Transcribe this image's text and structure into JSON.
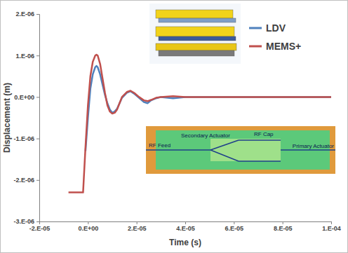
{
  "chart_data": {
    "type": "line",
    "x_label": "Time (s)",
    "y_label": "Displacement (m)",
    "x": [
      -8e-06,
      -6e-06,
      -4e-06,
      -2.5e-06,
      -2e-06,
      -1e-06,
      0,
      1e-06,
      2e-06,
      3e-06,
      3.5e-06,
      4e-06,
      5e-06,
      6e-06,
      7e-06,
      8e-06,
      9e-06,
      1e-05,
      1.1e-05,
      1.2e-05,
      1.3e-05,
      1.4e-05,
      1.6e-05,
      1.75e-05,
      1.9e-05,
      2.1e-05,
      2.3e-05,
      2.45e-05,
      2.6e-05,
      2.8e-05,
      3e-05,
      3.5e-05,
      4e-05,
      5e-05,
      6e-05,
      8e-05,
      0.0001
    ],
    "series": [
      {
        "name": "LDV",
        "color": "#4f81bd",
        "values": [
          null,
          null,
          null,
          null,
          null,
          -1.3e-06,
          -5e-07,
          2e-07,
          5.5e-07,
          7.2e-07,
          7.5e-07,
          7.2e-07,
          5.5e-07,
          3e-07,
          5e-08,
          -1.5e-07,
          -3e-07,
          -3.8e-07,
          -3.5e-07,
          -2.8e-07,
          -1.5e-07,
          -2e-08,
          1e-07,
          1.4e-07,
          8e-08,
          -2e-08,
          -1.2e-07,
          -1.5e-07,
          -8e-08,
          -3e-08,
          0,
          -3e-08,
          0,
          0,
          0,
          0,
          0
        ]
      },
      {
        "name": "MEMS+",
        "color": "#c0504d",
        "values": [
          -2.3e-06,
          -2.3e-06,
          -2.3e-06,
          -2.3e-06,
          -2.3e-06,
          -1.2e-06,
          -2e-07,
          5e-07,
          8.5e-07,
          1e-06,
          1.02e-06,
          1e-06,
          8e-07,
          4.5e-07,
          1e-07,
          -2e-07,
          -3.5e-07,
          -4e-07,
          -3.8e-07,
          -3e-07,
          -1.5e-07,
          0,
          1.2e-07,
          1.5e-07,
          1e-07,
          0,
          -8e-08,
          -1e-07,
          -7e-08,
          -2e-08,
          0,
          2e-08,
          0,
          0,
          0,
          0,
          0
        ]
      }
    ],
    "xlim": [
      -2e-05,
      0.0001
    ],
    "xticks": [
      {
        "value": -2e-05,
        "label": "-2.E-05"
      },
      {
        "value": 0,
        "label": "0.E+00"
      },
      {
        "value": 2e-05,
        "label": "2.E-05"
      },
      {
        "value": 4e-05,
        "label": "4.E-05"
      },
      {
        "value": 6e-05,
        "label": "6.E-05"
      },
      {
        "value": 8e-05,
        "label": "8.E-05"
      },
      {
        "value": 0.0001,
        "label": "1.E-04"
      }
    ],
    "ylim": [
      -3e-06,
      2e-06
    ],
    "yticks": [
      {
        "value": -3e-06,
        "label": "-3.E-06"
      },
      {
        "value": -2e-06,
        "label": "-2.E-06"
      },
      {
        "value": -1e-06,
        "label": "-1.E-06"
      },
      {
        "value": 0,
        "label": "0.E+00"
      },
      {
        "value": 1e-06,
        "label": "1.E-06"
      },
      {
        "value": 2e-06,
        "label": "2.E-06"
      }
    ],
    "grid": false,
    "legend": "top-right",
    "annotations": [
      "RF Feed",
      "Secondary Actuator",
      "RF Cap",
      "Primary Actuator"
    ]
  }
}
